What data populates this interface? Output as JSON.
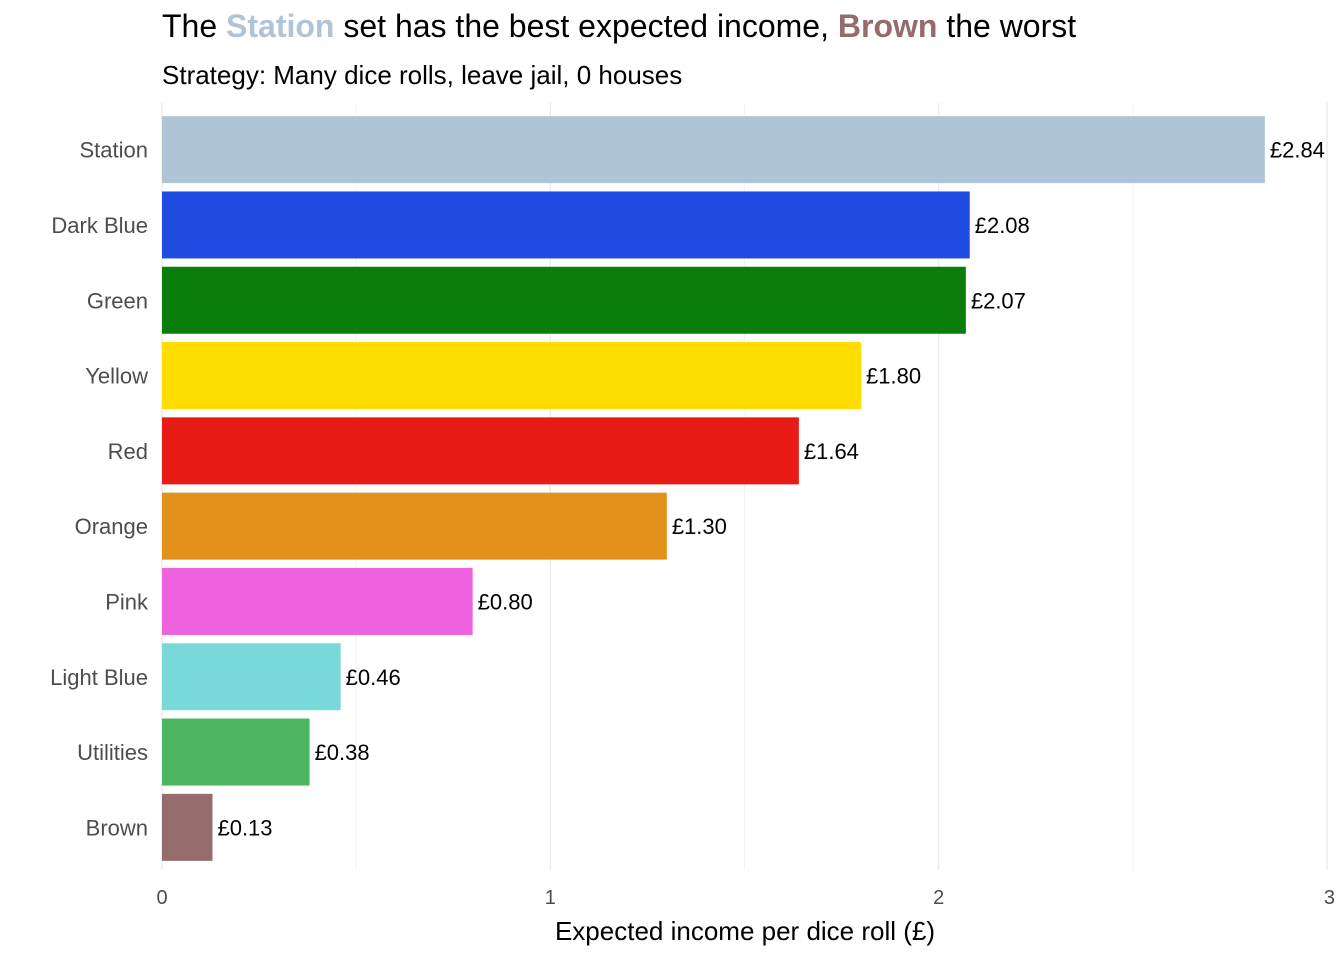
{
  "title": {
    "part1": "The ",
    "highlight1": "Station",
    "part2": " set has the best expected income, ",
    "highlight2": "Brown",
    "part3": " the worst",
    "highlight1_color": "#B0C4D8",
    "highlight2_color": "#956B6B"
  },
  "subtitle": "Strategy: Many dice rolls, leave jail, 0 houses",
  "chart_data": {
    "type": "bar",
    "orientation": "horizontal",
    "title": "The Station set has the best expected income, Brown the worst",
    "subtitle": "Strategy: Many dice rolls, leave jail, 0 houses",
    "xlabel": "Expected income per dice roll (£)",
    "ylabel": "",
    "xlim": [
      0,
      3
    ],
    "xticks": [
      0,
      1,
      2,
      3
    ],
    "grid": true,
    "legend": "none",
    "categories": [
      "Station",
      "Dark Blue",
      "Green",
      "Yellow",
      "Red",
      "Orange",
      "Pink",
      "Light Blue",
      "Utilities",
      "Brown"
    ],
    "values": [
      2.84,
      2.08,
      2.07,
      1.8,
      1.64,
      1.3,
      0.8,
      0.46,
      0.38,
      0.13
    ],
    "value_labels": [
      "£2.84",
      "£2.08",
      "£2.07",
      "£1.80",
      "£1.64",
      "£1.30",
      "£0.80",
      "£0.46",
      "£0.38",
      "£0.13"
    ],
    "colors": [
      "#B0C4D8",
      "#1F4CE0",
      "#0A7D0A",
      "#FFDD00",
      "#E81B17",
      "#E4911C",
      "#EE62DF",
      "#79D8D8",
      "#4CB55F",
      "#956B6B"
    ]
  }
}
